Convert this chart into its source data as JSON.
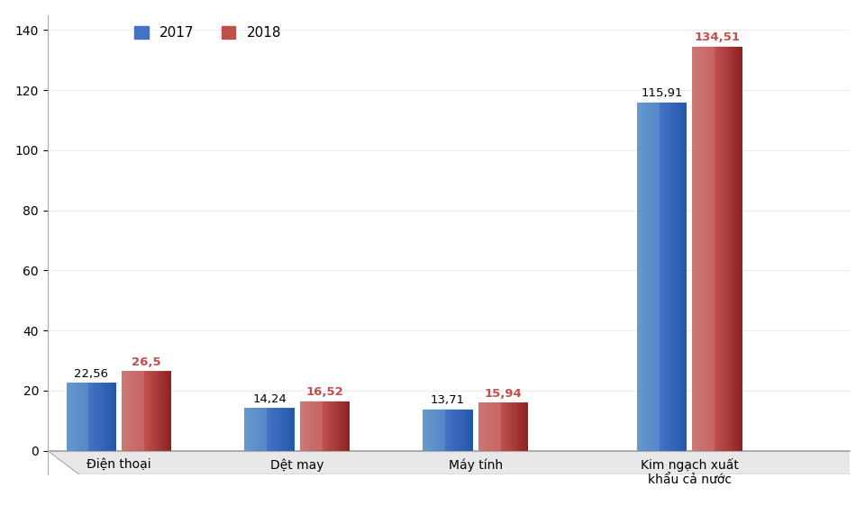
{
  "categories": [
    "Điện thoại",
    "Dệt may",
    "Máy tính",
    "Kim ngạch xuất\nkhẩu cả nước"
  ],
  "values_2017": [
    22.56,
    14.24,
    13.71,
    115.91
  ],
  "values_2018": [
    26.5,
    16.52,
    15.94,
    134.51
  ],
  "labels_2017": [
    "22,56",
    "14,24",
    "13,71",
    "115,91"
  ],
  "labels_2018": [
    "26,5",
    "16,52",
    "15,94",
    "134,51"
  ],
  "color_2017_light": "#6699CC",
  "color_2017_mid": "#4472C4",
  "color_2017_dark": "#2255AA",
  "color_2018_light": "#CC7777",
  "color_2018_mid": "#C0504D",
  "color_2018_dark": "#8B2020",
  "ylim": [
    0,
    145
  ],
  "yticks": [
    0,
    20,
    40,
    60,
    80,
    100,
    120,
    140
  ],
  "legend_2017": "2017",
  "legend_2018": "2018",
  "background_color": "#ffffff",
  "label_color_2017": "#000000",
  "label_color_2018": "#C0504D",
  "group_centers": [
    0.35,
    1.35,
    2.35,
    3.55
  ],
  "bar_width": 0.28,
  "bar_gap": 0.03,
  "ellipse_ratio": 0.22
}
